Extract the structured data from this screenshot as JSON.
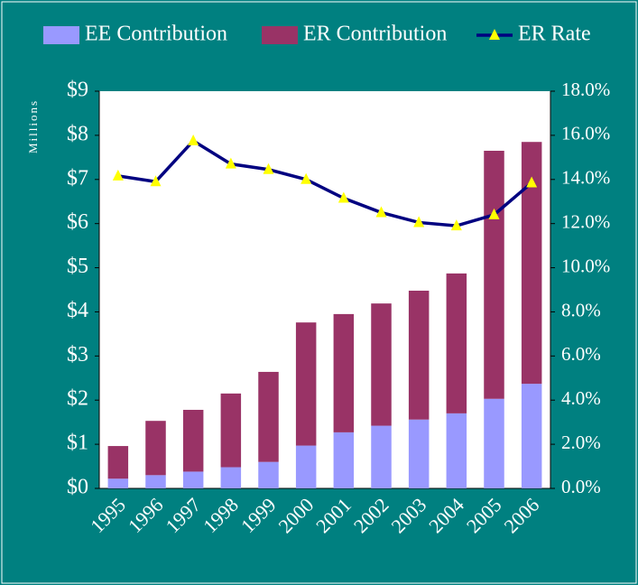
{
  "chart_data": {
    "type": "bar",
    "ylabel": "Millions",
    "categories": [
      "1995",
      "1996",
      "1997",
      "1998",
      "1999",
      "2000",
      "2001",
      "2002",
      "2003",
      "2004",
      "2005",
      "2006"
    ],
    "series": [
      {
        "name": "EE Contribution",
        "color": "#9999ff",
        "values": [
          0.22,
          0.3,
          0.38,
          0.48,
          0.6,
          0.97,
          1.27,
          1.42,
          1.56,
          1.7,
          2.03,
          2.37
        ]
      },
      {
        "name": "ER Contribution",
        "color": "#993366",
        "values": [
          0.74,
          1.23,
          1.4,
          1.67,
          2.04,
          2.79,
          2.68,
          2.77,
          2.92,
          3.17,
          5.62,
          5.48
        ]
      },
      {
        "name": "ER Rate",
        "type": "line",
        "axis": "y2",
        "color": "#000080",
        "marker_color": "#ffff00",
        "values": [
          14.16,
          13.9,
          15.75,
          14.7,
          14.45,
          14.0,
          13.15,
          12.5,
          12.05,
          11.9,
          12.4,
          13.85
        ]
      }
    ],
    "ylim": [
      0,
      9
    ],
    "yticks": [
      {
        "value": 0,
        "label": "$0"
      },
      {
        "value": 1,
        "label": "$1"
      },
      {
        "value": 2,
        "label": "$2"
      },
      {
        "value": 3,
        "label": "$3"
      },
      {
        "value": 4,
        "label": "$4"
      },
      {
        "value": 5,
        "label": "$5"
      },
      {
        "value": 6,
        "label": "$6"
      },
      {
        "value": 7,
        "label": "$7"
      },
      {
        "value": 8,
        "label": "$8"
      },
      {
        "value": 9,
        "label": "$9"
      }
    ],
    "y2lim": [
      0,
      18
    ],
    "y2ticks": [
      {
        "value": 0,
        "label": "0.0%"
      },
      {
        "value": 2,
        "label": "2.0%"
      },
      {
        "value": 4,
        "label": "4.0%"
      },
      {
        "value": 6,
        "label": "6.0%"
      },
      {
        "value": 8,
        "label": "8.0%"
      },
      {
        "value": 10,
        "label": "10.0%"
      },
      {
        "value": 12,
        "label": "12.0%"
      },
      {
        "value": 14,
        "label": "14.0%"
      },
      {
        "value": 16,
        "label": "16.0%"
      },
      {
        "value": 18,
        "label": "18.0%"
      }
    ],
    "legend": "top",
    "stacked": true
  }
}
